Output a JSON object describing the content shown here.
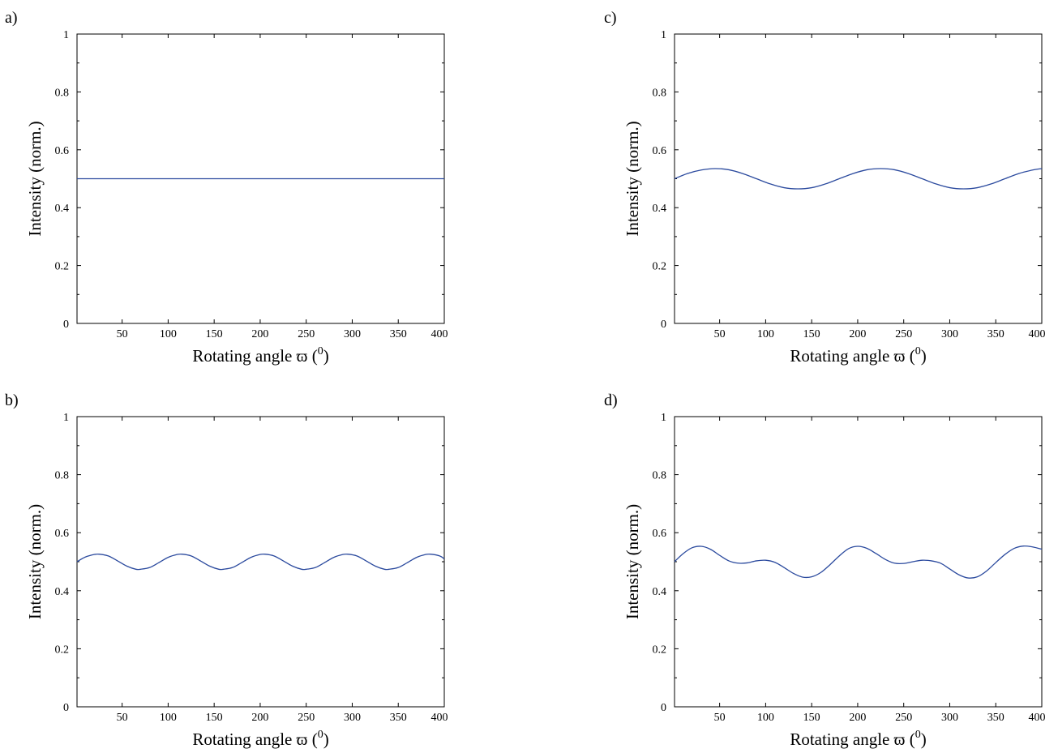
{
  "chart_data": [
    {
      "panel_label": "a)",
      "type": "line",
      "xlabel": "Rotating angle ϖ (",
      "xlabel_sup": "0",
      "xlabel_close": ")",
      "ylabel": "Intensity (norm.)",
      "xlim": [
        1,
        400
      ],
      "ylim": [
        0,
        1
      ],
      "xticks": [
        50,
        100,
        150,
        200,
        250,
        300,
        350,
        400
      ],
      "xtick_labels": [
        "50",
        "100",
        "150",
        "200",
        "250",
        "300",
        "350",
        "400"
      ],
      "yticks": [
        0,
        0.2,
        0.4,
        0.6,
        0.8,
        1
      ],
      "ytick_labels": [
        "0",
        "0.2",
        "0.4",
        "0.6",
        "0.8",
        "1"
      ],
      "line_color": "#2b4a9e",
      "series": [
        {
          "x": [
            1,
            400
          ],
          "y": [
            0.5,
            0.5
          ]
        }
      ]
    },
    {
      "panel_label": "b)",
      "type": "line",
      "xlabel": "Rotating angle ϖ (",
      "xlabel_sup": "0",
      "xlabel_close": ")",
      "ylabel": "Intensity (norm.)",
      "xlim": [
        1,
        400
      ],
      "ylim": [
        0,
        1
      ],
      "xticks": [
        50,
        100,
        150,
        200,
        250,
        300,
        350,
        400
      ],
      "xtick_labels": [
        "50",
        "100",
        "150",
        "200",
        "250",
        "300",
        "350",
        "400"
      ],
      "yticks": [
        0,
        0.2,
        0.4,
        0.6,
        0.8,
        1
      ],
      "ytick_labels": [
        "0",
        "0.2",
        "0.4",
        "0.6",
        "0.8",
        "1"
      ],
      "line_color": "#2b4a9e",
      "series": [
        {
          "x": [
            1,
            10,
            20,
            25,
            35,
            45,
            55,
            65,
            70,
            80,
            90,
            100,
            110,
            115,
            125,
            135,
            145,
            155,
            160,
            170,
            180,
            190,
            200,
            205,
            215,
            225,
            235,
            245,
            250,
            260,
            270,
            280,
            290,
            295,
            305,
            315,
            325,
            335,
            340,
            350,
            360,
            370,
            380,
            385,
            395,
            400
          ],
          "y": [
            0.5,
            0.516,
            0.525,
            0.526,
            0.52,
            0.503,
            0.485,
            0.474,
            0.474,
            0.48,
            0.497,
            0.515,
            0.525,
            0.526,
            0.52,
            0.503,
            0.485,
            0.474,
            0.474,
            0.48,
            0.497,
            0.515,
            0.525,
            0.526,
            0.52,
            0.503,
            0.485,
            0.474,
            0.474,
            0.48,
            0.497,
            0.515,
            0.525,
            0.526,
            0.52,
            0.503,
            0.485,
            0.474,
            0.474,
            0.48,
            0.497,
            0.515,
            0.525,
            0.526,
            0.52,
            0.51
          ]
        }
      ]
    },
    {
      "panel_label": "c)",
      "type": "line",
      "xlabel": "Rotating angle ϖ (",
      "xlabel_sup": "0",
      "xlabel_close": ")",
      "ylabel": "Intensity (norm.)",
      "xlim": [
        1,
        400
      ],
      "ylim": [
        0,
        1
      ],
      "xticks": [
        50,
        100,
        150,
        200,
        250,
        300,
        350,
        400
      ],
      "xtick_labels": [
        "50",
        "100",
        "150",
        "200",
        "250",
        "300",
        "350",
        "400"
      ],
      "yticks": [
        0,
        0.2,
        0.4,
        0.6,
        0.8,
        1
      ],
      "ytick_labels": [
        "0",
        "0.2",
        "0.4",
        "0.6",
        "0.8",
        "1"
      ],
      "line_color": "#2b4a9e",
      "series": [
        {
          "x": [
            1,
            15,
            30,
            45,
            60,
            75,
            90,
            105,
            120,
            135,
            150,
            165,
            180,
            195,
            210,
            225,
            240,
            255,
            270,
            285,
            300,
            315,
            330,
            345,
            360,
            375,
            390,
            400
          ],
          "y": [
            0.5,
            0.518,
            0.53,
            0.535,
            0.531,
            0.518,
            0.5,
            0.482,
            0.469,
            0.465,
            0.469,
            0.482,
            0.5,
            0.518,
            0.531,
            0.535,
            0.531,
            0.518,
            0.5,
            0.482,
            0.469,
            0.465,
            0.469,
            0.482,
            0.5,
            0.518,
            0.53,
            0.535
          ]
        }
      ]
    },
    {
      "panel_label": "d)",
      "type": "line",
      "xlabel": "Rotating angle ϖ (",
      "xlabel_sup": "0",
      "xlabel_close": ")",
      "ylabel": "Intensity (norm.)",
      "xlim": [
        1,
        400
      ],
      "ylim": [
        0,
        1
      ],
      "xticks": [
        50,
        100,
        150,
        200,
        250,
        300,
        350,
        400
      ],
      "xtick_labels": [
        "50",
        "100",
        "150",
        "200",
        "250",
        "300",
        "350",
        "400"
      ],
      "yticks": [
        0,
        0.2,
        0.4,
        0.6,
        0.8,
        1
      ],
      "ytick_labels": [
        "0",
        "0.2",
        "0.4",
        "0.6",
        "0.8",
        "1"
      ],
      "line_color": "#2b4a9e",
      "series": [
        {
          "x": [
            1,
            10,
            20,
            30,
            40,
            50,
            60,
            70,
            80,
            90,
            100,
            110,
            120,
            130,
            140,
            150,
            160,
            170,
            180,
            190,
            200,
            210,
            220,
            230,
            240,
            250,
            260,
            270,
            280,
            290,
            300,
            310,
            320,
            330,
            340,
            350,
            360,
            370,
            380,
            390,
            400
          ],
          "y": [
            0.5,
            0.527,
            0.548,
            0.553,
            0.543,
            0.522,
            0.503,
            0.495,
            0.496,
            0.503,
            0.505,
            0.498,
            0.48,
            0.46,
            0.447,
            0.448,
            0.463,
            0.49,
            0.52,
            0.545,
            0.553,
            0.546,
            0.528,
            0.508,
            0.495,
            0.494,
            0.5,
            0.505,
            0.503,
            0.495,
            0.475,
            0.455,
            0.444,
            0.448,
            0.468,
            0.497,
            0.525,
            0.546,
            0.554,
            0.551,
            0.543
          ]
        }
      ]
    }
  ]
}
